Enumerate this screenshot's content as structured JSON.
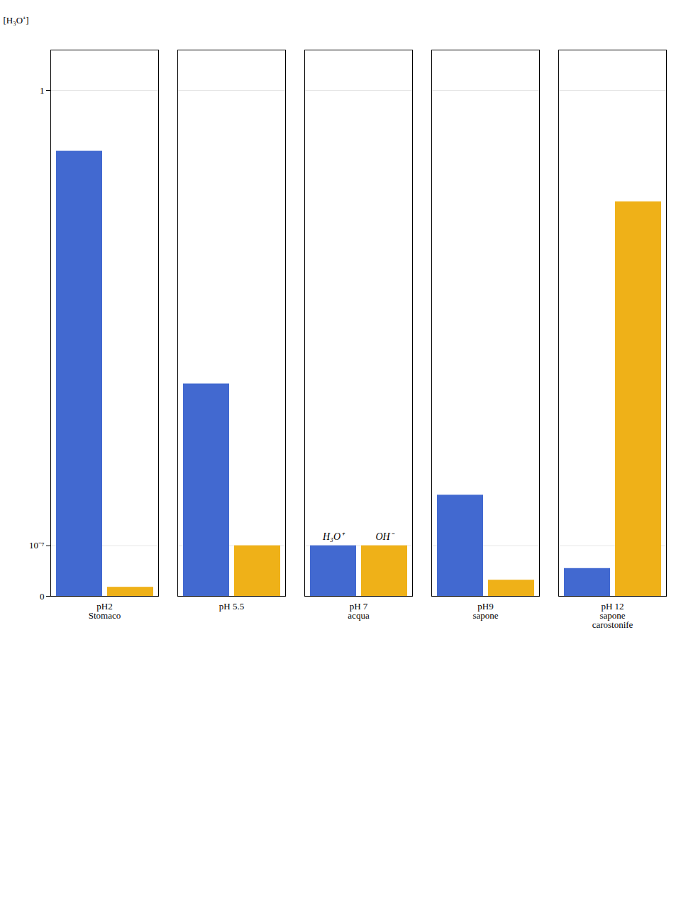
{
  "chart_data": {
    "type": "bar",
    "categories": [
      "pH2\nStomaco",
      "pH 5.5",
      "pH 7\nacqua",
      "pH9\nsapone",
      "pH 12\nsapone\ncarostonife"
    ],
    "series": [
      {
        "name": "H₃O⁺",
        "values": [
          0.88,
          0.42,
          0.1,
          0.2,
          0.055
        ]
      },
      {
        "name": "OH⁻",
        "values": [
          0.018,
          0.1,
          0.1,
          0.032,
          0.78
        ]
      }
    ],
    "y_label": "[H₃O⁺]",
    "ylim": [
      0,
      1.08
    ],
    "yticks": [
      0,
      {
        "value": 0.1,
        "label": "10⁻⁷"
      },
      1
    ],
    "grid": true,
    "annotations": [
      {
        "text": "H₃O⁺",
        "category": "pH 7\nacqua",
        "series": "H₃O⁺",
        "y": 0.1
      },
      {
        "text": "OH⁻",
        "category": "pH 7\nacqua",
        "series": "OH⁻",
        "y": 0.1
      }
    ]
  }
}
